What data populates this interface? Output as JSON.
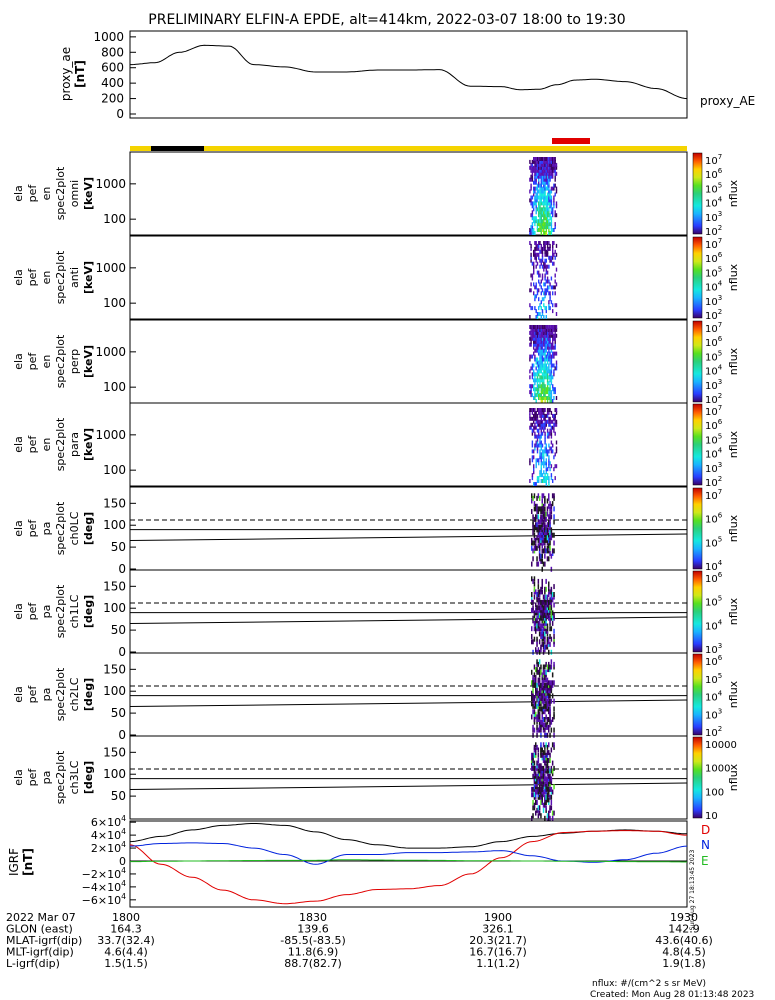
{
  "title": "PRELIMINARY ELFIN-A EPDE, alt=414km, 2022-03-07 18:00 to 19:30",
  "colors": {
    "sun_bar": "#f5d400",
    "eclipse_bar": "#000000",
    "science_bar": "#e00000",
    "bx_black": "#000000",
    "d_comp": "#e00000",
    "n_comp": "#0022dd",
    "e_comp": "#22bb22",
    "colorscale": [
      "#3a0066",
      "#5a10b0",
      "#2a3dff",
      "#1ab3ff",
      "#15e8e0",
      "#2bd07a",
      "#58e020",
      "#d0e81a",
      "#ffd000",
      "#ff7a00",
      "#ff1a00",
      "#c00000"
    ]
  },
  "panels": {
    "proxy_ae": {
      "ylabel": [
        "proxy_ae",
        "[nT]"
      ],
      "right_label": "proxy_AE",
      "yticks": [
        "1000",
        "800",
        "600",
        "400",
        "200",
        "0"
      ]
    },
    "spectro": [
      {
        "ylabel": [
          "ela",
          "pef",
          "en",
          "spec2plot",
          "omni",
          "[keV]"
        ],
        "yticks": [
          "1000",
          "100"
        ],
        "cb_label": "nflux"
      },
      {
        "ylabel": [
          "ela",
          "pef",
          "en",
          "spec2plot",
          "anti",
          "[keV]"
        ],
        "yticks": [
          "1000",
          "100"
        ],
        "cb_label": "nflux"
      },
      {
        "ylabel": [
          "ela",
          "pef",
          "en",
          "spec2plot",
          "perp",
          "[keV]"
        ],
        "yticks": [
          "1000",
          "100"
        ],
        "cb_label": "nflux"
      },
      {
        "ylabel": [
          "ela",
          "pef",
          "en",
          "spec2plot",
          "para",
          "[keV]"
        ],
        "yticks": [
          "1000",
          "100"
        ],
        "cb_label": "nflux"
      }
    ],
    "pitch": [
      {
        "ylabel": [
          "ela",
          "pef",
          "pa",
          "spec2plot",
          "ch0LC",
          "[deg]"
        ],
        "yticks": [
          "150",
          "100",
          "50",
          "0"
        ],
        "cb_label": "nflux"
      },
      {
        "ylabel": [
          "ela",
          "pef",
          "pa",
          "spec2plot",
          "ch1LC",
          "[deg]"
        ],
        "yticks": [
          "150",
          "100",
          "50",
          "0"
        ],
        "cb_label": "nflux"
      },
      {
        "ylabel": [
          "ela",
          "pef",
          "pa",
          "spec2plot",
          "ch2LC",
          "[deg]"
        ],
        "yticks": [
          "150",
          "100",
          "50",
          "0"
        ],
        "cb_label": "nflux"
      },
      {
        "ylabel": [
          "ela",
          "pef",
          "pa",
          "spec2plot",
          "ch3LC",
          "[deg]"
        ],
        "yticks": [
          "150",
          "100",
          "50"
        ],
        "cb_label": "nflux"
      }
    ],
    "cb_spectro_ticks": [
      "10^7",
      "10^6",
      "10^5",
      "10^4",
      "10^3",
      "10^2"
    ],
    "cb_pa0_ticks": [
      "10^7",
      "10^6",
      "10^5",
      "10^4"
    ],
    "cb_pa1_ticks": [
      "10^6",
      "10^5",
      "10^4",
      "10^3"
    ],
    "cb_pa2_ticks": [
      "10^6",
      "10^5",
      "10^4",
      "10^3",
      "10^2"
    ],
    "cb_pa3_ticks": [
      "10000",
      "1000",
      "100",
      "10"
    ],
    "igrf": {
      "ylabel": [
        "IGRF",
        "[nT]"
      ],
      "yticks": [
        "6×10^4",
        "4×10^4",
        "2×10^4",
        "0",
        "−2×10^4",
        "−4×10^4",
        "−6×10^4"
      ],
      "legend": [
        "D",
        "N",
        "E"
      ],
      "side_text": "Sun Aug 27 18:13:45 2023"
    }
  },
  "footer": {
    "rows": [
      {
        "label": "2022 Mar 07",
        "values": [
          "1800",
          "1830",
          "1900",
          "1930"
        ]
      },
      {
        "label": "GLON (east)",
        "values": [
          "164.3",
          "139.6",
          "326.1",
          "142.9"
        ]
      },
      {
        "label": "MLAT-igrf(dip)",
        "values": [
          "33.7(32.4)",
          "-85.5(-83.5)",
          "20.3(21.7)",
          "43.6(40.6)"
        ]
      },
      {
        "label": "MLT-igrf(dip)",
        "values": [
          "4.6(4.4)",
          "11.8(6.9)",
          "16.7(16.7)",
          "4.8(4.5)"
        ]
      },
      {
        "label": "L-igrf(dip)",
        "values": [
          "1.5(1.5)",
          "88.7(82.7)",
          "1.1(1.2)",
          "1.9(1.8)"
        ]
      }
    ],
    "units_note": "nflux: #/(cm^2 s sr MeV)",
    "created": "Created: Mon Aug 28 01:13:48 2023"
  },
  "chart_data": [
    {
      "type": "line",
      "title": "PRELIMINARY ELFIN-A EPDE, alt=414km, 2022-03-07 18:00 to 19:30",
      "ylabel": "proxy_ae [nT]",
      "ylim": [
        0,
        1100
      ],
      "x_minutes": [
        0,
        4,
        8,
        12,
        16,
        20,
        25,
        30,
        35,
        40,
        45,
        50,
        55,
        60,
        63,
        66,
        69,
        72,
        75,
        80,
        85,
        90
      ],
      "series": [
        {
          "name": "proxy_AE",
          "values": [
            640,
            665,
            800,
            890,
            880,
            640,
            610,
            545,
            545,
            570,
            570,
            575,
            360,
            355,
            315,
            320,
            380,
            440,
            450,
            420,
            330,
            200
          ]
        }
      ]
    },
    {
      "type": "heatmap",
      "ylabel": "energy [keV]",
      "yscale": "log",
      "ylim": [
        55,
        7000
      ],
      "active_window_minutes": [
        64.5,
        69
      ],
      "colorbar": {
        "label": "nflux",
        "range": [
          10,
          10000000
        ],
        "scale": "log"
      }
    },
    {
      "type": "line",
      "ylabel": "IGRF [nT]",
      "ylim": [
        -68000,
        68000
      ],
      "x_minutes": [
        0,
        5,
        10,
        15,
        20,
        25,
        30,
        35,
        40,
        45,
        50,
        55,
        60,
        65,
        70,
        75,
        80,
        85,
        90
      ],
      "series": [
        {
          "values": [
            30000,
            38000,
            48000,
            55000,
            58000,
            55000,
            45000,
            33000,
            25000,
            20000,
            20000,
            22000,
            30000,
            38000,
            43000,
            46000,
            48000,
            46000,
            42000
          ]
        },
        {
          "name": "D",
          "values": [
            25000,
            -5000,
            -25000,
            -45000,
            -60000,
            -66000,
            -62000,
            -52000,
            -44000,
            -43000,
            -38000,
            -20000,
            5000,
            30000,
            44000,
            46000,
            47000,
            46000,
            40000
          ]
        },
        {
          "name": "N",
          "values": [
            23000,
            27000,
            28000,
            27000,
            20000,
            10000,
            -5000,
            10000,
            10000,
            13000,
            13000,
            14000,
            16000,
            8000,
            0,
            -2000,
            2000,
            12000,
            23000
          ]
        },
        {
          "name": "E",
          "values": [
            -1000,
            -500,
            0,
            500,
            800,
            1000,
            1000,
            2000,
            1500,
            1200,
            900,
            500,
            300,
            0,
            -300,
            -600,
            -900,
            -1200,
            -1500
          ]
        }
      ]
    }
  ]
}
